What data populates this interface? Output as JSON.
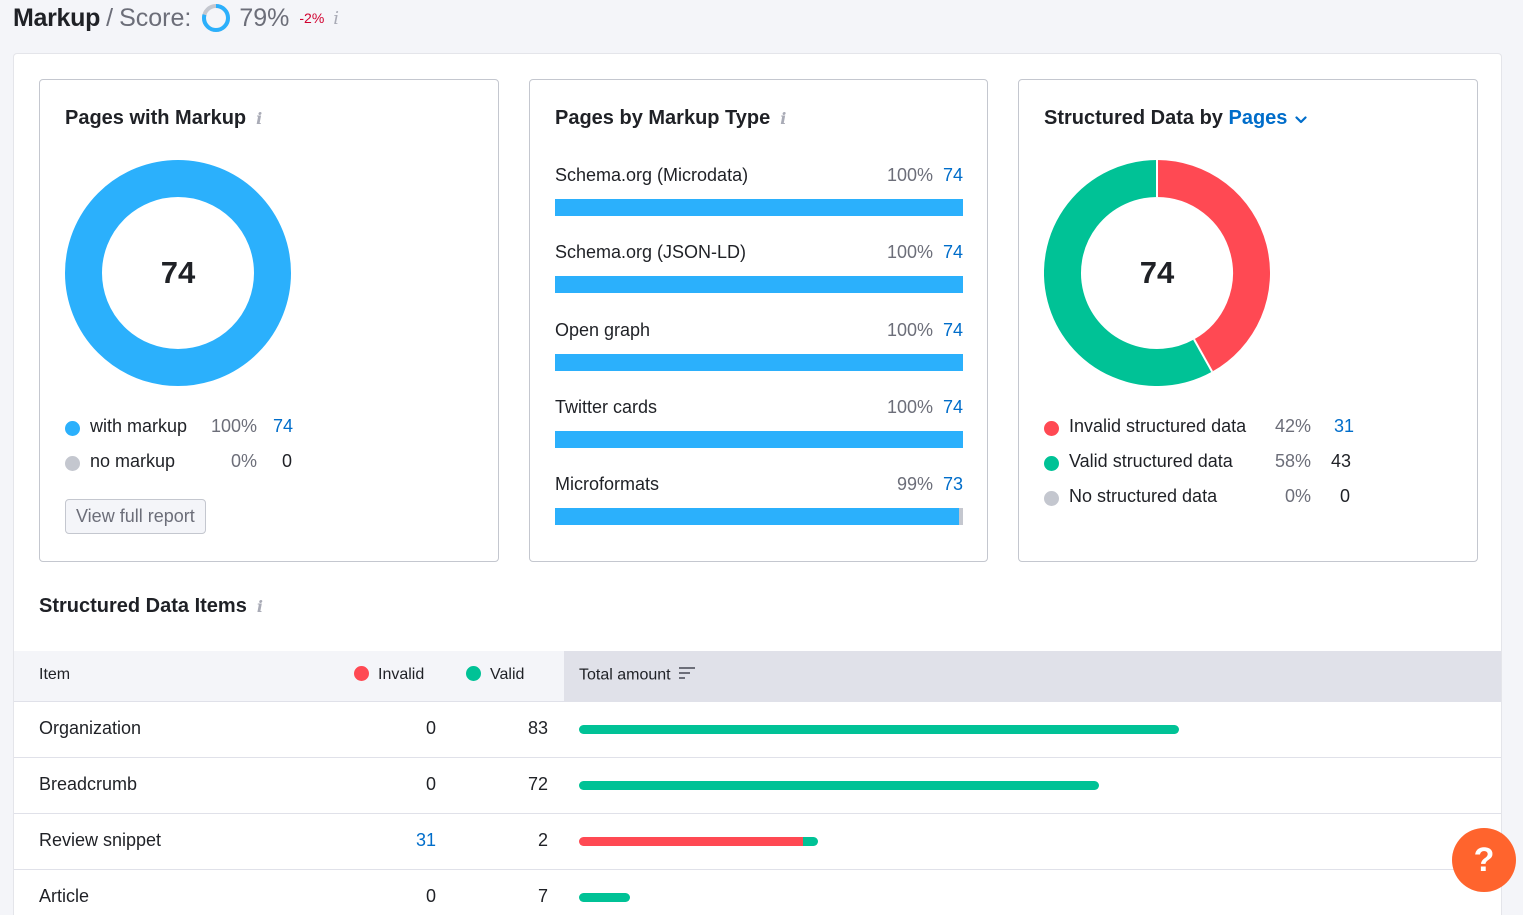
{
  "header": {
    "title": "Markup",
    "slash": "/",
    "score_label": "Score:",
    "score_value": "79%",
    "score_fraction": 0.79,
    "delta": "-2%"
  },
  "colors": {
    "blue": "#2bb0fc",
    "red": "#ff4953",
    "green": "#00c296",
    "gray": "#c4c7cf",
    "link": "#006dca",
    "help": "#ff642d"
  },
  "pages_with_markup": {
    "title": "Pages with Markup",
    "total": "74",
    "legend": [
      {
        "label": "with markup",
        "pct": "100%",
        "count": "74",
        "color": "#2bb0fc",
        "link": true
      },
      {
        "label": "no markup",
        "pct": "0%",
        "count": "0",
        "color": "#c4c7cf",
        "link": false
      }
    ],
    "button": "View full report"
  },
  "pages_by_markup_type": {
    "title": "Pages by Markup Type",
    "items": [
      {
        "label": "Schema.org (Microdata)",
        "pct": "100%",
        "count": "74",
        "fraction": 1.0
      },
      {
        "label": "Schema.org (JSON-LD)",
        "pct": "100%",
        "count": "74",
        "fraction": 1.0
      },
      {
        "label": "Open graph",
        "pct": "100%",
        "count": "74",
        "fraction": 1.0
      },
      {
        "label": "Twitter cards",
        "pct": "100%",
        "count": "74",
        "fraction": 1.0
      },
      {
        "label": "Microformats",
        "pct": "99%",
        "count": "73",
        "fraction": 0.99
      }
    ]
  },
  "structured_data": {
    "title_prefix": "Structured Data by",
    "title_link": "Pages",
    "total": "74",
    "legend": [
      {
        "label": "Invalid structured data",
        "pct": "42%",
        "count": "31",
        "color": "#ff4953",
        "link": true,
        "value": 31
      },
      {
        "label": "Valid structured data",
        "pct": "58%",
        "count": "43",
        "color": "#00c296",
        "link": false,
        "value": 43
      },
      {
        "label": "No structured data",
        "pct": "0%",
        "count": "0",
        "color": "#c4c7cf",
        "link": false,
        "value": 0
      }
    ]
  },
  "items_section": {
    "title": "Structured Data Items",
    "columns": {
      "item": "Item",
      "invalid": "Invalid",
      "valid": "Valid",
      "total": "Total amount"
    },
    "max_value": 83,
    "rows": [
      {
        "item": "Organization",
        "invalid": "0",
        "valid": "83",
        "invalid_n": 0,
        "valid_n": 83,
        "invalid_link": false
      },
      {
        "item": "Breadcrumb",
        "invalid": "0",
        "valid": "72",
        "invalid_n": 0,
        "valid_n": 72,
        "invalid_link": false
      },
      {
        "item": "Review snippet",
        "invalid": "31",
        "valid": "2",
        "invalid_n": 31,
        "valid_n": 2,
        "invalid_link": true
      },
      {
        "item": "Article",
        "invalid": "0",
        "valid": "7",
        "invalid_n": 0,
        "valid_n": 7,
        "invalid_link": false
      }
    ]
  },
  "help": {
    "label": "?"
  }
}
